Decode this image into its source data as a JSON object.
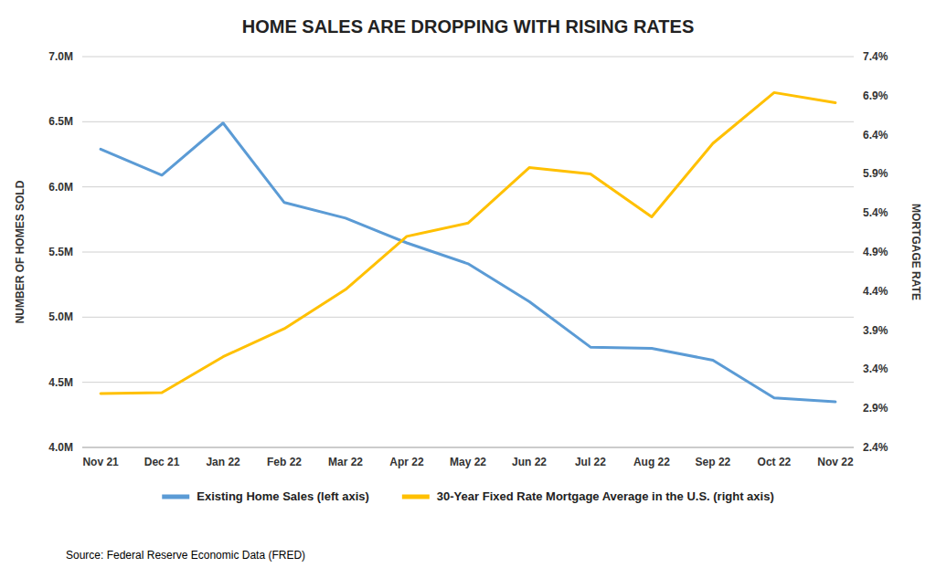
{
  "chart_data": {
    "type": "line",
    "title": "HOME SALES ARE DROPPING WITH RISING RATES",
    "categories": [
      "Nov 21",
      "Dec 21",
      "Jan 22",
      "Feb 22",
      "Mar 22",
      "Apr 22",
      "May 22",
      "Jun 22",
      "Jul 22",
      "Aug 22",
      "Sep 22",
      "Oct 22",
      "Nov 22"
    ],
    "series": [
      {
        "name": "Existing Home Sales (left axis)",
        "color": "#5B9BD5",
        "axis": "y",
        "values": [
          6.29,
          6.09,
          6.49,
          5.88,
          5.76,
          5.57,
          5.41,
          5.12,
          4.77,
          4.76,
          4.67,
          4.38,
          4.35
        ]
      },
      {
        "name": "30-Year Fixed Rate Mortgage Average in the U.S. (right axis)",
        "color": "#FFC000",
        "axis": "y2",
        "values": [
          3.09,
          3.1,
          3.56,
          3.92,
          4.42,
          5.1,
          5.27,
          5.98,
          5.9,
          5.35,
          6.29,
          6.94,
          6.81
        ]
      }
    ],
    "ylabel": "NUMBER OF HOMES SOLD",
    "y2label": "MORTGAGE RATE",
    "ylim": [
      4.0,
      7.0
    ],
    "yticks": [
      {
        "value": 4.0,
        "label": "4.0M"
      },
      {
        "value": 4.5,
        "label": "4.5M"
      },
      {
        "value": 5.0,
        "label": "5.0M"
      },
      {
        "value": 5.5,
        "label": "5.5M"
      },
      {
        "value": 6.0,
        "label": "6.0M"
      },
      {
        "value": 6.5,
        "label": "6.5M"
      },
      {
        "value": 7.0,
        "label": "7.0M"
      }
    ],
    "y2lim": [
      2.4,
      7.4
    ],
    "y2ticks": [
      {
        "value": 2.4,
        "label": "2.4%"
      },
      {
        "value": 2.9,
        "label": "2.9%"
      },
      {
        "value": 3.4,
        "label": "3.4%"
      },
      {
        "value": 3.9,
        "label": "3.9%"
      },
      {
        "value": 4.4,
        "label": "4.4%"
      },
      {
        "value": 4.9,
        "label": "4.9%"
      },
      {
        "value": 5.4,
        "label": "5.4%"
      },
      {
        "value": 5.9,
        "label": "5.9%"
      },
      {
        "value": 6.4,
        "label": "6.4%"
      },
      {
        "value": 6.9,
        "label": "6.9%"
      },
      {
        "value": 7.4,
        "label": "7.4%"
      }
    ],
    "grid": true,
    "legend": "bottom",
    "source": "Source: Federal Reserve Economic Data (FRED)"
  }
}
